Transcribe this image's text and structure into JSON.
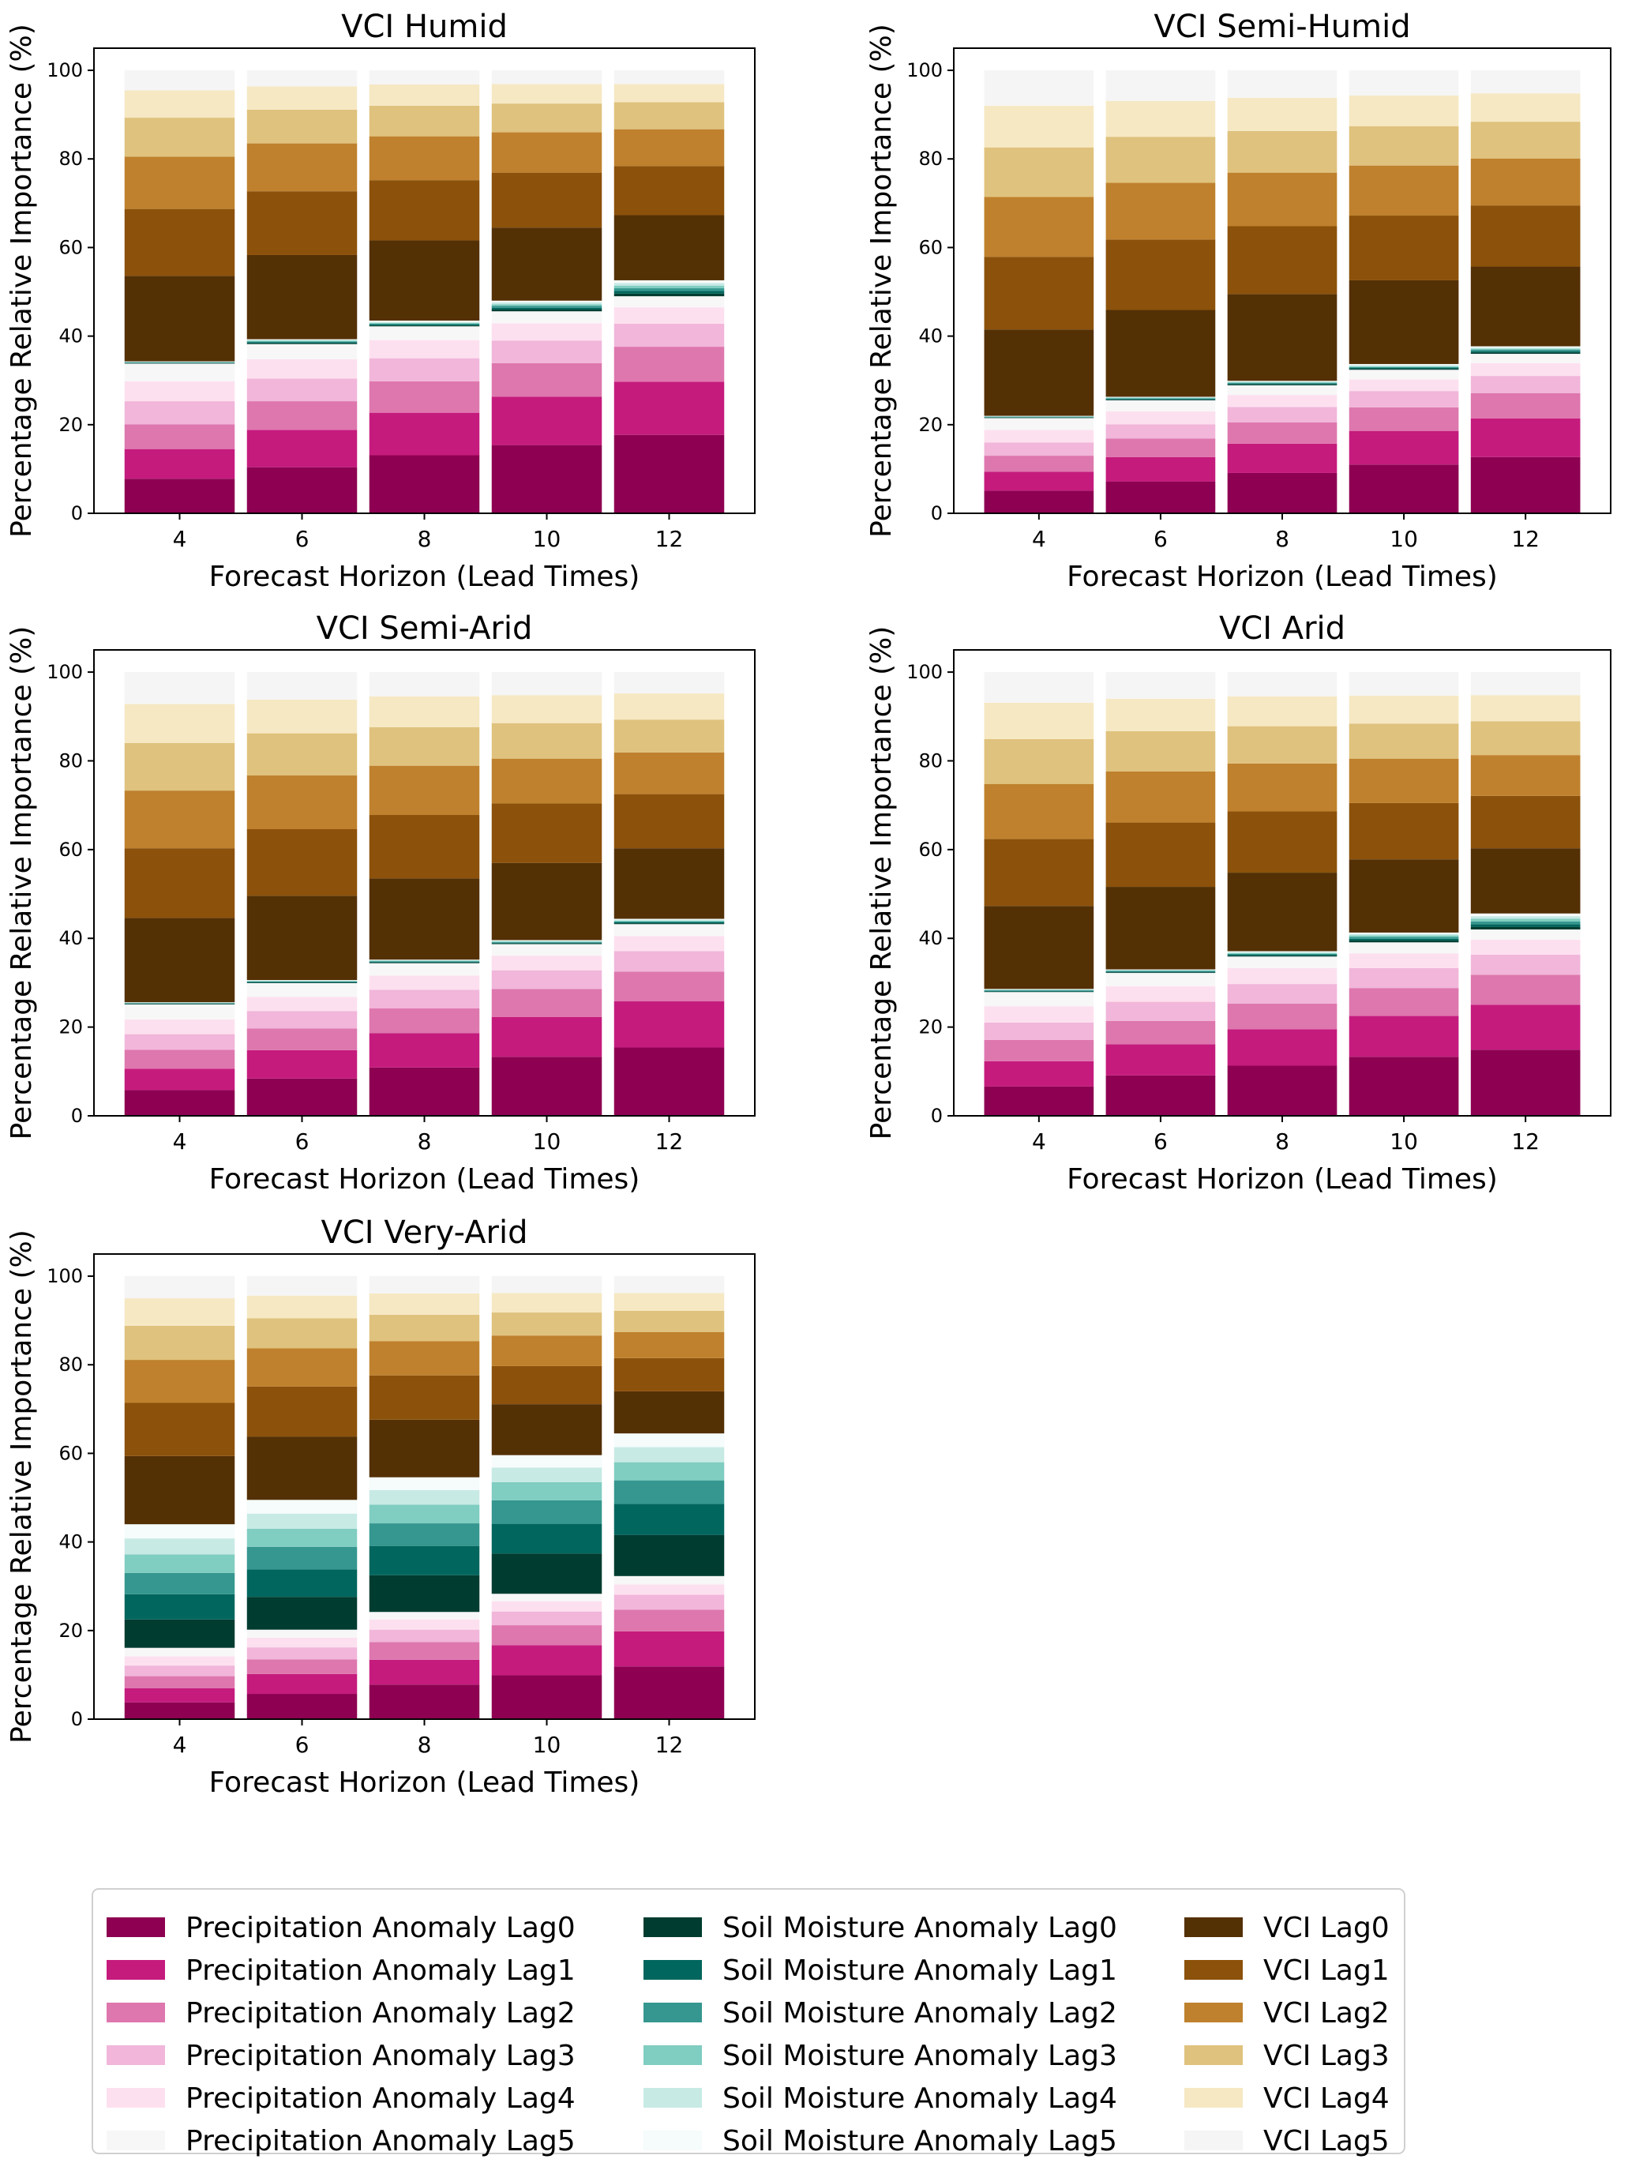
{
  "figure": {
    "legend": {
      "columns": [
        [
          {
            "label": "Precipitation Anomaly Lag0",
            "color": "#8e0152"
          },
          {
            "label": "Precipitation Anomaly Lag1",
            "color": "#c51b7d"
          },
          {
            "label": "Precipitation Anomaly Lag2",
            "color": "#de77ae"
          },
          {
            "label": "Precipitation Anomaly Lag3",
            "color": "#f1b6da"
          },
          {
            "label": "Precipitation Anomaly Lag4",
            "color": "#fde0ef"
          },
          {
            "label": "Precipitation Anomaly Lag5",
            "color": "#f7f7f7"
          }
        ],
        [
          {
            "label": "Soil Moisture Anomaly Lag0",
            "color": "#003c30"
          },
          {
            "label": "Soil Moisture Anomaly Lag1",
            "color": "#01665e"
          },
          {
            "label": "Soil Moisture Anomaly Lag2",
            "color": "#35978f"
          },
          {
            "label": "Soil Moisture Anomaly Lag3",
            "color": "#80cdc1"
          },
          {
            "label": "Soil Moisture Anomaly Lag4",
            "color": "#c7eae5"
          },
          {
            "label": "Soil Moisture Anomaly Lag5",
            "color": "#f5fcfb"
          }
        ],
        [
          {
            "label": "VCI Lag0",
            "color": "#543005"
          },
          {
            "label": "VCI Lag1",
            "color": "#8c510a"
          },
          {
            "label": "VCI Lag2",
            "color": "#bf812d"
          },
          {
            "label": "VCI Lag3",
            "color": "#dfc27d"
          },
          {
            "label": "VCI Lag4",
            "color": "#f6e8c3"
          },
          {
            "label": "VCI Lag5",
            "color": "#f5f5f5"
          }
        ]
      ]
    }
  },
  "chart_data": [
    {
      "type": "bar",
      "stacked": true,
      "title": "VCI Humid",
      "xlabel": "Forecast Horizon (Lead Times)",
      "ylabel": "Percentage Relative Importance (%)",
      "categories": [
        "4",
        "6",
        "8",
        "10",
        "12"
      ],
      "yticks": [
        0,
        20,
        40,
        60,
        80,
        100
      ],
      "ylim": [
        0,
        105
      ],
      "grid": false,
      "series_order": [
        "Precipitation Anomaly Lag0",
        "Precipitation Anomaly Lag1",
        "Precipitation Anomaly Lag2",
        "Precipitation Anomaly Lag3",
        "Precipitation Anomaly Lag4",
        "Precipitation Anomaly Lag5",
        "Soil Moisture Anomaly Lag0",
        "Soil Moisture Anomaly Lag1",
        "Soil Moisture Anomaly Lag2",
        "Soil Moisture Anomaly Lag3",
        "Soil Moisture Anomaly Lag4",
        "Soil Moisture Anomaly Lag5",
        "VCI Lag0",
        "VCI Lag1",
        "VCI Lag2",
        "VCI Lag3",
        "VCI Lag4",
        "VCI Lag5"
      ],
      "cumulative_tops": [
        [
          7.8,
          14.5,
          20.1,
          25.3,
          29.8,
          33.8,
          33.9,
          34.0,
          34.1,
          34.2,
          34.25,
          34.3,
          53.6,
          68.7,
          80.5,
          89.3,
          95.5,
          100
        ],
        [
          10.4,
          18.8,
          25.3,
          30.4,
          34.8,
          38.2,
          38.4,
          38.6,
          38.8,
          39.0,
          39.15,
          39.3,
          58.3,
          72.7,
          83.5,
          91.1,
          96.4,
          100
        ],
        [
          13.1,
          22.7,
          29.8,
          35.0,
          39.1,
          42.2,
          42.4,
          42.6,
          42.8,
          43.0,
          43.2,
          43.5,
          61.6,
          75.2,
          85.1,
          92.0,
          96.8,
          100
        ],
        [
          15.4,
          26.3,
          33.9,
          39.0,
          42.9,
          45.6,
          46.0,
          46.4,
          46.8,
          47.2,
          47.6,
          48.0,
          64.5,
          76.9,
          86.0,
          92.5,
          96.9,
          100
        ],
        [
          17.7,
          29.7,
          37.6,
          42.8,
          46.5,
          49.0,
          49.6,
          50.2,
          50.8,
          51.4,
          52.0,
          52.6,
          67.3,
          78.4,
          86.7,
          92.8,
          96.9,
          100
        ]
      ]
    },
    {
      "type": "bar",
      "stacked": true,
      "title": "VCI Semi-Humid",
      "xlabel": "Forecast Horizon (Lead Times)",
      "ylabel": "Percentage Relative Importance (%)",
      "categories": [
        "4",
        "6",
        "8",
        "10",
        "12"
      ],
      "yticks": [
        0,
        20,
        40,
        60,
        80,
        100
      ],
      "ylim": [
        0,
        105
      ],
      "grid": false,
      "cumulative_tops": [
        [
          5.1,
          9.4,
          13.0,
          16.0,
          18.8,
          21.5,
          21.6,
          21.7,
          21.8,
          21.9,
          21.95,
          22.0,
          41.5,
          57.9,
          71.4,
          82.6,
          92.0,
          100
        ],
        [
          7.2,
          12.7,
          16.9,
          20.1,
          23.0,
          25.5,
          25.65,
          25.8,
          25.95,
          26.1,
          26.2,
          26.3,
          45.9,
          61.8,
          74.6,
          85.0,
          93.1,
          100
        ],
        [
          9.1,
          15.7,
          20.5,
          24.0,
          26.7,
          28.9,
          29.1,
          29.3,
          29.45,
          29.6,
          29.75,
          29.9,
          49.5,
          64.8,
          76.9,
          86.3,
          93.8,
          100
        ],
        [
          11.0,
          18.6,
          23.9,
          27.6,
          30.2,
          32.4,
          32.6,
          32.8,
          33.0,
          33.2,
          33.45,
          33.7,
          52.6,
          67.2,
          78.5,
          87.4,
          94.3,
          100
        ],
        [
          12.7,
          21.4,
          27.1,
          31.0,
          33.9,
          36.0,
          36.3,
          36.6,
          36.9,
          37.15,
          37.4,
          37.7,
          55.7,
          69.5,
          80.1,
          88.4,
          94.8,
          100
        ]
      ]
    },
    {
      "type": "bar",
      "stacked": true,
      "title": "VCI Semi-Arid",
      "xlabel": "Forecast Horizon (Lead Times)",
      "ylabel": "Percentage Relative Importance (%)",
      "categories": [
        "4",
        "6",
        "8",
        "10",
        "12"
      ],
      "yticks": [
        0,
        20,
        40,
        60,
        80,
        100
      ],
      "ylim": [
        0,
        105
      ],
      "grid": false,
      "cumulative_tops": [
        [
          5.8,
          10.6,
          14.9,
          18.4,
          21.7,
          25.1,
          25.2,
          25.3,
          25.4,
          25.5,
          25.55,
          25.6,
          44.6,
          60.3,
          73.3,
          84.0,
          92.8,
          100
        ],
        [
          8.4,
          14.8,
          19.7,
          23.6,
          26.8,
          29.9,
          30.0,
          30.15,
          30.3,
          30.4,
          30.5,
          30.6,
          49.6,
          64.6,
          76.7,
          86.2,
          93.8,
          100
        ],
        [
          10.9,
          18.6,
          24.2,
          28.4,
          31.6,
          34.4,
          34.55,
          34.7,
          34.85,
          35.0,
          35.1,
          35.2,
          53.5,
          67.8,
          78.9,
          87.6,
          94.5,
          100
        ],
        [
          13.3,
          22.3,
          28.6,
          32.8,
          36.1,
          38.7,
          38.85,
          39.0,
          39.15,
          39.3,
          39.45,
          39.6,
          57.0,
          70.4,
          80.5,
          88.5,
          94.8,
          100
        ],
        [
          15.4,
          25.8,
          32.5,
          37.1,
          40.5,
          43.2,
          43.4,
          43.6,
          43.8,
          44.0,
          44.2,
          44.4,
          60.3,
          72.5,
          81.9,
          89.3,
          95.2,
          100
        ]
      ]
    },
    {
      "type": "bar",
      "stacked": true,
      "title": "VCI Arid",
      "xlabel": "Forecast Horizon (Lead Times)",
      "ylabel": "Percentage Relative Importance (%)",
      "categories": [
        "4",
        "6",
        "8",
        "10",
        "12"
      ],
      "yticks": [
        0,
        20,
        40,
        60,
        80,
        100
      ],
      "ylim": [
        0,
        105
      ],
      "grid": false,
      "cumulative_tops": [
        [
          6.6,
          12.3,
          17.1,
          21.0,
          24.7,
          27.9,
          28.0,
          28.15,
          28.3,
          28.4,
          28.5,
          28.6,
          47.3,
          62.4,
          74.8,
          84.9,
          93.1,
          100
        ],
        [
          9.1,
          16.1,
          21.4,
          25.7,
          29.2,
          32.2,
          32.35,
          32.5,
          32.65,
          32.8,
          32.9,
          33.0,
          51.6,
          66.1,
          77.6,
          86.7,
          94.0,
          100
        ],
        [
          11.3,
          19.5,
          25.3,
          29.7,
          33.3,
          35.9,
          36.1,
          36.3,
          36.5,
          36.7,
          36.9,
          37.1,
          54.8,
          68.6,
          79.4,
          87.8,
          94.5,
          100
        ],
        [
          13.3,
          22.5,
          28.8,
          33.3,
          36.6,
          39.1,
          39.5,
          39.9,
          40.3,
          40.65,
          41.0,
          41.3,
          57.8,
          70.5,
          80.5,
          88.4,
          94.7,
          100
        ],
        [
          14.9,
          25.0,
          31.8,
          36.3,
          39.7,
          42.0,
          42.6,
          43.2,
          43.8,
          44.4,
          45.0,
          45.6,
          60.3,
          72.1,
          81.3,
          88.9,
          94.8,
          100
        ]
      ]
    },
    {
      "type": "bar",
      "stacked": true,
      "title": "VCI Very-Arid",
      "xlabel": "Forecast Horizon (Lead Times)",
      "ylabel": "Percentage Relative Importance (%)",
      "categories": [
        "4",
        "6",
        "8",
        "10",
        "12"
      ],
      "yticks": [
        0,
        20,
        40,
        60,
        80,
        100
      ],
      "ylim": [
        0,
        105
      ],
      "grid": false,
      "cumulative_tops": [
        [
          3.8,
          7.0,
          9.7,
          12.1,
          14.2,
          16.1,
          22.5,
          28.2,
          33.0,
          37.2,
          40.8,
          44.0,
          59.4,
          71.4,
          81.1,
          88.8,
          95.0,
          100
        ],
        [
          5.7,
          10.2,
          13.5,
          16.2,
          18.4,
          20.2,
          27.6,
          33.8,
          38.9,
          43.0,
          46.4,
          49.5,
          63.8,
          75.1,
          83.7,
          90.5,
          95.6,
          100
        ],
        [
          7.8,
          13.4,
          17.4,
          20.2,
          22.5,
          24.2,
          32.5,
          39.1,
          44.2,
          48.4,
          51.7,
          54.6,
          67.6,
          77.6,
          85.3,
          91.3,
          96.1,
          100
        ],
        [
          9.9,
          16.7,
          21.2,
          24.3,
          26.6,
          28.3,
          37.4,
          44.1,
          49.4,
          53.5,
          56.8,
          59.6,
          71.1,
          79.7,
          86.6,
          91.8,
          96.2,
          100
        ],
        [
          11.9,
          19.8,
          24.7,
          28.1,
          30.4,
          32.3,
          41.6,
          48.6,
          53.9,
          58.0,
          61.4,
          64.5,
          74.0,
          81.5,
          87.4,
          92.2,
          96.2,
          100
        ]
      ]
    }
  ]
}
